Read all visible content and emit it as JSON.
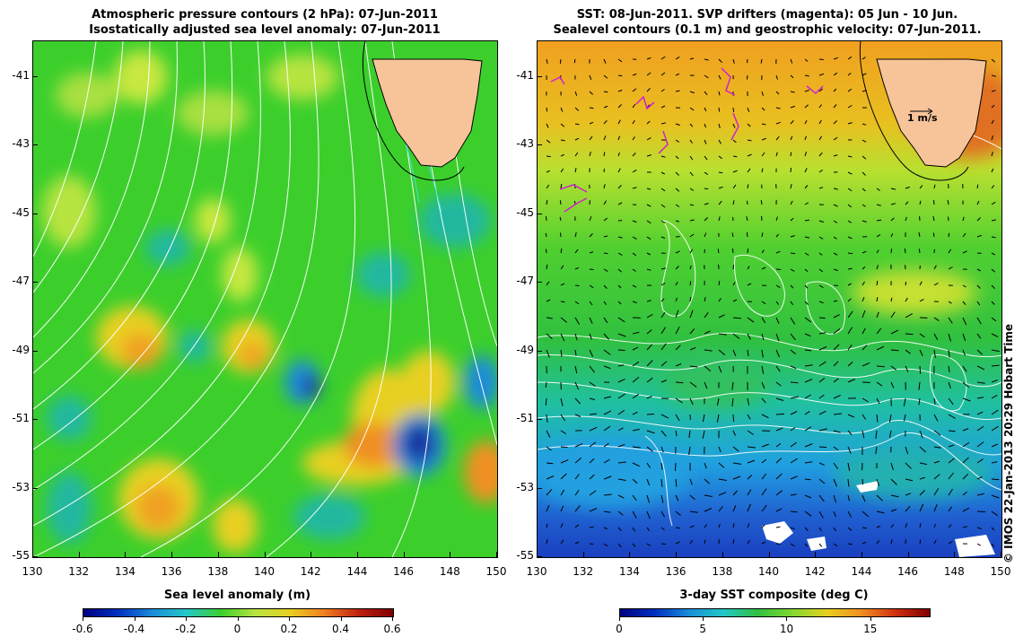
{
  "left_panel": {
    "title_line1": "Atmospheric pressure contours (2 hPa): 07-Jun-2011",
    "title_line2": "Isostatically adjusted sea level anomaly: 07-Jun-2011",
    "colorbar_title": "Sea level anomaly (m)",
    "colorbar_ticks": [
      "-0.6",
      "-0.4",
      "-0.2",
      "0",
      "0.2",
      "0.4",
      "0.6"
    ]
  },
  "right_panel": {
    "title_line1": "SST: 08-Jun-2011. SVP drifters (magenta): 05 Jun - 10 Jun.",
    "title_line2": "Sealevel contours (0.1 m) and geostrophic velocity: 07-Jun-2011.",
    "colorbar_title": "3-day SST composite (deg C)",
    "colorbar_ticks": [
      "0",
      "5",
      "10",
      "15"
    ],
    "velocity_scale_label": "1 m/s"
  },
  "axes": {
    "y_ticks": [
      "-41",
      "-43",
      "-45",
      "-47",
      "-49",
      "-51",
      "-53",
      "-55"
    ],
    "x_ticks": [
      "130",
      "132",
      "134",
      "136",
      "138",
      "140",
      "142",
      "144",
      "146",
      "148",
      "150"
    ]
  },
  "credit": "© IMOS 22-Jan-2013 20:29 Hobart Time",
  "colors": {
    "land": "#f7c49a",
    "sla_background": "#3ccf2c",
    "contour": "#ffffff",
    "drifter": "#d020d0"
  }
}
